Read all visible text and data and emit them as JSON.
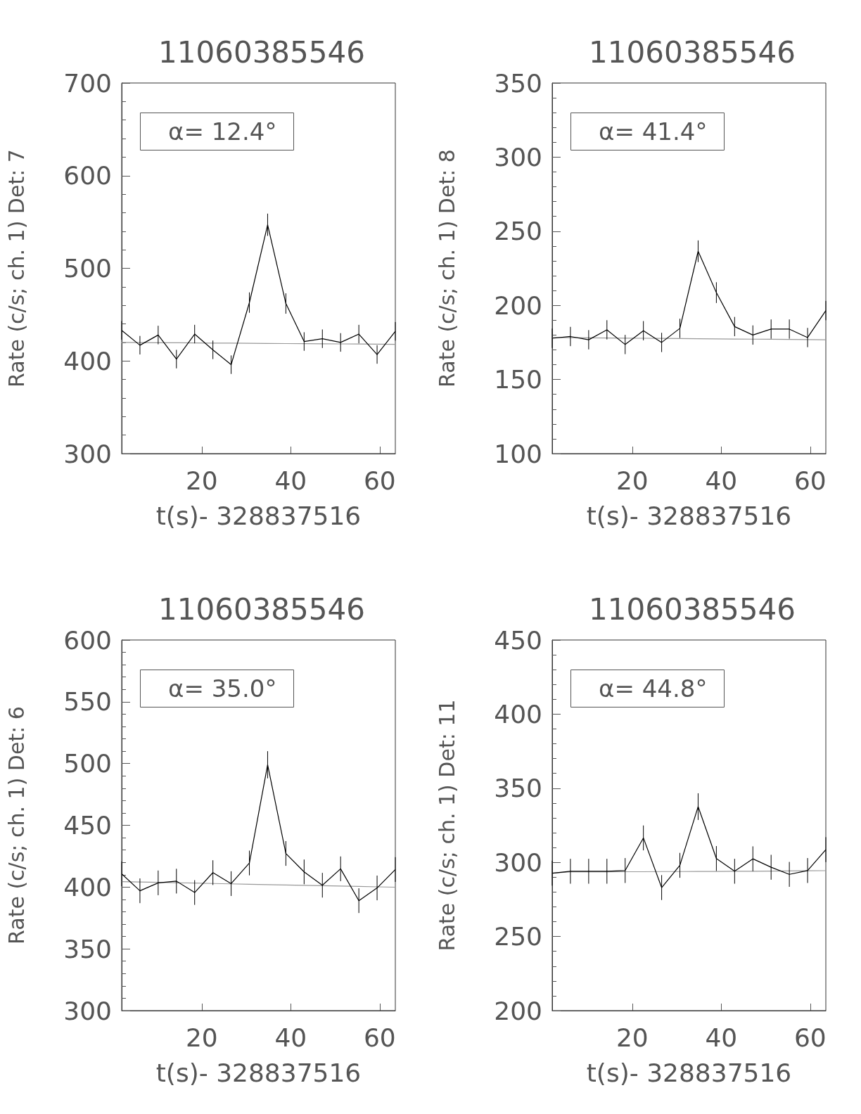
{
  "chart_data": [
    {
      "type": "line",
      "title": "11060385546",
      "xlabel": "t(s)- 328837516",
      "ylabel": "Rate (c/s; ch. 1) Det: 7",
      "annotations": [
        "α= 12.4°"
      ],
      "marker": "none",
      "x": [
        2,
        6.1,
        10.2,
        14.3,
        18.4,
        22.5,
        26.6,
        30.7,
        34.8,
        38.9,
        43,
        47.1,
        51.2,
        55.3,
        59.4,
        63.5
      ],
      "series": [
        {
          "color": "#000000",
          "values": [
            433,
            417,
            428,
            402,
            429,
            412,
            396,
            463,
            547,
            462,
            421,
            424,
            420,
            429,
            407,
            432
          ],
          "errors": [
            10,
            10,
            10,
            10,
            10,
            10,
            10,
            11,
            12,
            11,
            10,
            10,
            10,
            10,
            10,
            10
          ]
        },
        {
          "type": "line",
          "color": "#999999",
          "values": [
            420,
            419.9,
            419.7,
            419.6,
            419.5,
            419.3,
            419.2,
            419.1,
            418.9,
            418.8,
            418.7,
            418.5,
            418.4,
            418.3,
            418.1,
            418
          ]
        }
      ],
      "xlim": [
        2,
        63.5
      ],
      "xticks": [
        20,
        40,
        60
      ],
      "ylim": [
        300,
        700
      ],
      "yticks": [
        300,
        400,
        500,
        600,
        700
      ]
    },
    {
      "type": "line",
      "title": "11060385546",
      "xlabel": "t(s)- 328837516",
      "ylabel": "Rate (c/s; ch. 1) Det: 8",
      "annotations": [
        "α= 41.4°"
      ],
      "marker": "none",
      "x": [
        2,
        6.1,
        10.2,
        14.3,
        18.4,
        22.5,
        26.6,
        30.7,
        34.8,
        38.9,
        43,
        47.1,
        51.2,
        55.3,
        59.4,
        63.5
      ],
      "series": [
        {
          "color": "#000000",
          "values": [
            177.8,
            179,
            176.8,
            183.5,
            173.6,
            182.9,
            175,
            184.5,
            236.5,
            208.6,
            185.7,
            180,
            184,
            184,
            178.3,
            196.5
          ],
          "errors": [
            6.5,
            6.5,
            6.5,
            6.5,
            6.5,
            6.5,
            6.5,
            6.5,
            7.3,
            7,
            6.5,
            6.5,
            6.5,
            6.5,
            6.5,
            6.5
          ]
        },
        {
          "type": "line",
          "color": "#999999",
          "values": [
            178.3,
            178.2,
            178.1,
            178,
            177.9,
            177.8,
            177.7,
            177.6,
            177.5,
            177.4,
            177.3,
            177.2,
            177.1,
            177,
            176.9,
            176.8
          ]
        }
      ],
      "xlim": [
        2,
        63.5
      ],
      "xticks": [
        20,
        40,
        60
      ],
      "ylim": [
        100,
        350
      ],
      "yticks": [
        100,
        150,
        200,
        250,
        300,
        350
      ]
    },
    {
      "type": "line",
      "title": "11060385546",
      "xlabel": "t(s)- 328837516",
      "ylabel": "Rate (c/s; ch. 1) Det: 6",
      "annotations": [
        "α= 35.0°"
      ],
      "marker": "none",
      "x": [
        2,
        6.1,
        10.2,
        14.3,
        18.4,
        22.5,
        26.6,
        30.7,
        34.8,
        38.9,
        43,
        47.1,
        51.2,
        55.3,
        59.4,
        63.5
      ],
      "series": [
        {
          "color": "#000000",
          "values": [
            410.7,
            397,
            403.4,
            404.8,
            395.6,
            411.7,
            402.8,
            419.5,
            499,
            427.2,
            412.3,
            401.5,
            414.8,
            389,
            399.3,
            414.2
          ],
          "errors": [
            10,
            10,
            10,
            10,
            10,
            10,
            10,
            10,
            11,
            10,
            10,
            10,
            10,
            10,
            10,
            10
          ]
        },
        {
          "type": "line",
          "color": "#999999",
          "values": [
            404.4,
            404.1,
            403.8,
            403.5,
            403.2,
            402.9,
            402.6,
            402.3,
            402,
            401.7,
            401.4,
            401.1,
            400.8,
            400.5,
            400.2,
            399.9
          ]
        }
      ],
      "xlim": [
        2,
        63.5
      ],
      "xticks": [
        20,
        40,
        60
      ],
      "ylim": [
        300,
        600
      ],
      "yticks": [
        300,
        350,
        400,
        450,
        500,
        550,
        600
      ]
    },
    {
      "type": "line",
      "title": "11060385546",
      "xlabel": "t(s)- 328837516",
      "ylabel": "Rate (c/s; ch. 1) Det: 11",
      "annotations": [
        "α= 44.8°"
      ],
      "marker": "none",
      "x": [
        2,
        6.1,
        10.2,
        14.3,
        18.4,
        22.5,
        26.6,
        30.7,
        34.8,
        38.9,
        43,
        47.1,
        51.2,
        55.3,
        59.4,
        63.5
      ],
      "series": [
        {
          "color": "#000000",
          "values": [
            292.7,
            294,
            294,
            294,
            294.5,
            316.5,
            283,
            298,
            337.6,
            302.6,
            294,
            302.4,
            296.7,
            291.9,
            294.5,
            308.6
          ],
          "errors": [
            8.4,
            8.4,
            8.4,
            8.4,
            8.4,
            8.4,
            8.4,
            8.4,
            9,
            8.4,
            8.4,
            8.4,
            8.4,
            8.4,
            8.4,
            8.4
          ]
        },
        {
          "type": "line",
          "color": "#999999",
          "values": [
            292.7,
            293.6,
            293.6,
            293.6,
            293.7,
            293.7,
            293.8,
            293.8,
            293.9,
            293.9,
            294,
            294,
            294.1,
            294.2,
            294.3,
            294.4
          ]
        }
      ],
      "xlim": [
        2,
        63.5
      ],
      "xticks": [
        20,
        40,
        60
      ],
      "ylim": [
        200,
        450
      ],
      "yticks": [
        200,
        250,
        300,
        350,
        400,
        450
      ]
    }
  ]
}
